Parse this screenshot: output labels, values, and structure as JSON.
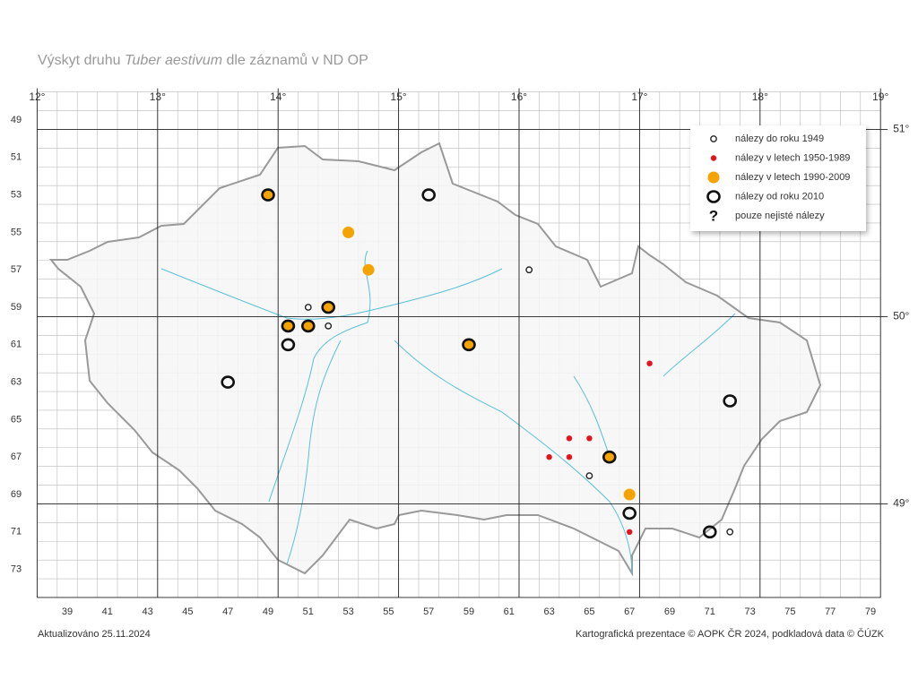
{
  "title": {
    "prefix": "Výskyt druhu ",
    "species": "Tuber aestivum",
    "suffix": " dle záznamů v ND OP"
  },
  "map": {
    "longitude_labels": [
      "12°",
      "13°",
      "14°",
      "15°",
      "16°",
      "17°",
      "18°",
      "19°"
    ],
    "latitude_labels": [
      "51°",
      "50°",
      "49°"
    ],
    "row_labels": [
      49,
      51,
      53,
      55,
      57,
      59,
      61,
      63,
      65,
      67,
      69,
      71,
      73
    ],
    "column_labels": [
      39,
      41,
      43,
      45,
      47,
      49,
      51,
      53,
      55,
      57,
      59,
      61,
      63,
      65,
      67,
      69,
      71,
      73,
      75,
      77,
      79
    ]
  },
  "legend": [
    {
      "label": "nálezy do roku 1949",
      "points": [
        [
          62,
          57
        ],
        [
          51,
          59
        ],
        [
          52,
          60
        ],
        [
          65,
          68
        ],
        [
          72,
          71
        ]
      ]
    },
    {
      "label": "nálezy v letech 1950-1989",
      "points": [
        [
          68,
          62
        ],
        [
          64,
          66
        ],
        [
          65,
          66
        ],
        [
          63,
          67
        ],
        [
          64,
          67
        ],
        [
          66,
          67
        ],
        [
          67,
          71
        ]
      ]
    },
    {
      "label": "nálezy v letech 1990-2009",
      "points": [
        [
          53,
          55
        ],
        [
          54,
          57
        ],
        [
          67,
          69
        ],
        [
          49,
          53
        ],
        [
          52,
          59
        ],
        [
          50,
          60
        ],
        [
          51,
          60
        ],
        [
          59,
          61
        ],
        [
          66,
          67
        ]
      ]
    },
    {
      "label": "nálezy od roku 2010",
      "points": [
        [
          57,
          53
        ],
        [
          50,
          61
        ],
        [
          47,
          63
        ],
        [
          72,
          64
        ],
        [
          67,
          70
        ],
        [
          71,
          71
        ],
        [
          49,
          53
        ],
        [
          52,
          59
        ],
        [
          50,
          60
        ],
        [
          51,
          60
        ],
        [
          59,
          61
        ],
        [
          66,
          67
        ]
      ]
    },
    {
      "label": "pouze nejisté nálezy",
      "points": []
    }
  ],
  "footer": {
    "updated": "Aktualizováno 25.11.2024",
    "credits": "Kartografická prezentace © AOPK ČR 2024, podkladová data © ČÚZK"
  }
}
